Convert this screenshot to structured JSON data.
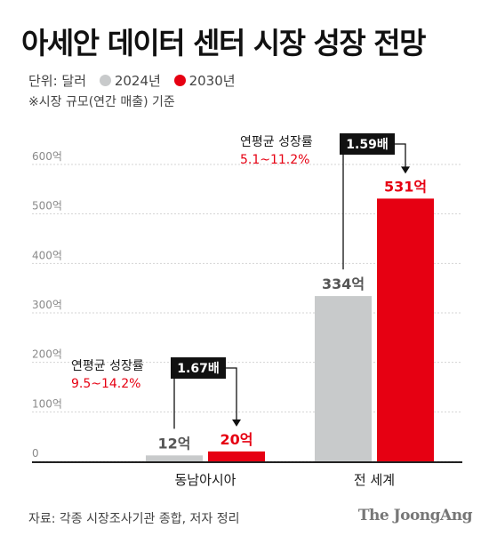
{
  "header": {
    "title": "아세안 데이터 센터 시장 성장 전망",
    "unit_label": "단위: 달러",
    "note": "※시장 규모(연간 매출) 기준"
  },
  "legend": [
    {
      "label": "2024년",
      "color": "#c8cacb"
    },
    {
      "label": "2030년",
      "color": "#e60012"
    }
  ],
  "chart_data": {
    "type": "bar",
    "categories": [
      "동남아시아",
      "전 세계"
    ],
    "series": [
      {
        "name": "2024년",
        "color": "#c8cacb",
        "values": [
          12,
          334
        ],
        "labels": [
          "12억",
          "334억"
        ]
      },
      {
        "name": "2030년",
        "color": "#e60012",
        "values": [
          20,
          531
        ],
        "labels": [
          "20억",
          "531억"
        ]
      }
    ],
    "y_ticks": [
      {
        "value": 0,
        "label": "0"
      },
      {
        "value": 100,
        "label": "100억"
      },
      {
        "value": 200,
        "label": "200억"
      },
      {
        "value": 300,
        "label": "300억"
      },
      {
        "value": 400,
        "label": "400억"
      },
      {
        "value": 500,
        "label": "500억"
      },
      {
        "value": 600,
        "label": "600억"
      }
    ],
    "ylim": [
      0,
      600
    ],
    "grid": true,
    "annotations": [
      {
        "category": "동남아시아",
        "title": "연평균 성장률",
        "rate": "9.5~14.2%",
        "multiplier": "1.67배"
      },
      {
        "category": "전 세계",
        "title": "연평균 성장률",
        "rate": "5.1~11.2%",
        "multiplier": "1.59배"
      }
    ]
  },
  "footer": {
    "source": "자료: 각종 시장조사기관 종합, 저자 정리",
    "brand": "The JoongAng"
  }
}
